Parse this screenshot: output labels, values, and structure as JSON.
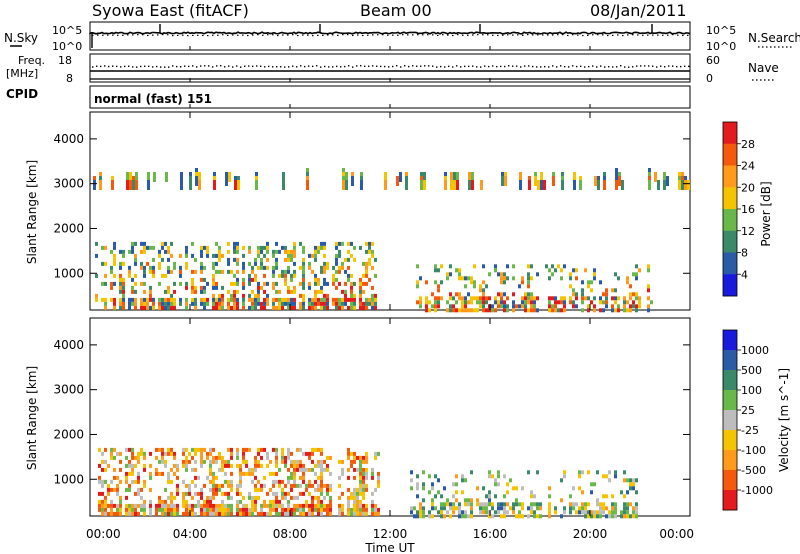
{
  "header": {
    "station": "Syowa East (fitACF)",
    "beam": "Beam 00",
    "date": "08/Jan/2011"
  },
  "noise_panel": {
    "left_label": "N.Sky",
    "right_label": "N.Search",
    "left_ticks": [
      "10^5",
      "10^0"
    ],
    "right_ticks": [
      "10^5",
      "10^0"
    ]
  },
  "freq_panel": {
    "left_label_1": "Freq.",
    "left_label_2": "[MHz]",
    "right_label": "Nave",
    "left_ticks": [
      "18",
      "8"
    ],
    "right_ticks": [
      "60",
      "0"
    ]
  },
  "cpid": {
    "label": "CPID",
    "mode_text": "normal (fast) 151"
  },
  "x_axis": {
    "label": "Time UT",
    "ticks": [
      "00:00",
      "04:00",
      "08:00",
      "12:00",
      "16:00",
      "20:00",
      "00:00"
    ]
  },
  "chart_data": [
    {
      "type": "heatmap",
      "title": "",
      "xlabel": "Time UT",
      "ylabel": "Slant Range [km]",
      "xlim_hours": [
        0,
        24
      ],
      "ylim_km": [
        180,
        4600
      ],
      "y_ticks": [
        "1000",
        "2000",
        "3000",
        "4000"
      ],
      "colorbar": {
        "label": "Power [dB]",
        "ticks": [
          "28",
          "24",
          "20",
          "16",
          "12",
          "8",
          "4"
        ],
        "colors": [
          "#e41a1c",
          "#f55a0c",
          "#ff9a1a",
          "#f5c400",
          "#6ab84a",
          "#3a8a6a",
          "#2a5aa8",
          "#1a1adf"
        ]
      },
      "echo_regions": [
        {
          "t_start": 0.2,
          "t_end": 11.5,
          "range_start": 200,
          "range_end": 1700,
          "note": "dense backscatter"
        },
        {
          "t_start": 12.8,
          "t_end": 22.5,
          "range_start": 200,
          "range_end": 1200,
          "note": "patchy backscatter"
        },
        {
          "t_start": 0,
          "t_end": 24,
          "range_start": 3000,
          "range_end": 3350,
          "note": "sparse striations"
        }
      ]
    },
    {
      "type": "heatmap",
      "title": "",
      "xlabel": "Time UT",
      "ylabel": "Slant Range [km]",
      "xlim_hours": [
        0,
        24
      ],
      "ylim_km": [
        180,
        4600
      ],
      "y_ticks": [
        "1000",
        "2000",
        "3000",
        "4000"
      ],
      "colorbar": {
        "label": "Velocity [m s^-1]",
        "ticks": [
          "1000",
          "500",
          "100",
          "25",
          "-25",
          "-100",
          "-500",
          "-1000"
        ],
        "colors": [
          "#1a1adf",
          "#2a5aa8",
          "#3a8a6a",
          "#6ab84a",
          "#bdbdbd",
          "#f5c400",
          "#ff9a1a",
          "#f55a0c",
          "#e41a1c"
        ]
      },
      "echo_regions": [
        {
          "t_start": 0.2,
          "t_end": 11.5,
          "range_start": 200,
          "range_end": 1700,
          "dominant": "negative velocity"
        },
        {
          "t_start": 12.8,
          "t_end": 22.5,
          "range_start": 200,
          "range_end": 1200,
          "dominant": "mixed"
        }
      ]
    }
  ]
}
